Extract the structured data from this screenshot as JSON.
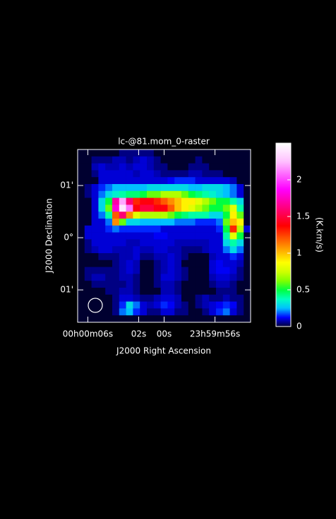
{
  "chart_data": {
    "type": "heatmap",
    "title": "lc-@81.mom_0-raster",
    "xlabel": "J2000 Right Ascension",
    "ylabel": "J2000 Declination",
    "colorbar_label": "(K.km/s)",
    "xlim": [
      6.8,
      -6.8
    ],
    "xticks": [
      {
        "value": 6,
        "label": "00h00m06s"
      },
      {
        "value": 2,
        "label": "02s"
      },
      {
        "value": 0,
        "label": "00s"
      },
      {
        "value": -4,
        "label": "23h59m56s"
      }
    ],
    "ylim": [
      -1.62,
      1.69
    ],
    "yticks": [
      {
        "value": 1,
        "label": "01'"
      },
      {
        "value": 0,
        "label": "0°"
      },
      {
        "value": -1,
        "label": "01'"
      }
    ],
    "zlim": [
      0,
      2.5
    ],
    "zticks": [
      0,
      0.5,
      1,
      1.5,
      2
    ],
    "colors": [
      "#000030",
      "#0000ff",
      "#00c0ff",
      "#00ffc0",
      "#00ff40",
      "#80ff00",
      "#d0ff00",
      "#ffff00",
      "#ffc000",
      "#ff8000",
      "#ff4000",
      "#ff0000",
      "#ff0040",
      "#ff0080",
      "#ff00c0",
      "#ff00ff",
      "#ff40ff",
      "#ff80ff",
      "#ffc0ff",
      "#ffe0ff",
      "#ffffff"
    ],
    "z": [
      [
        0,
        0,
        0,
        0,
        0,
        0,
        0.05,
        0.05,
        0.05,
        0.05,
        0.05,
        0,
        0,
        0,
        0,
        0,
        0,
        0,
        0,
        0,
        0,
        0,
        0,
        0,
        0
      ],
      [
        0,
        0,
        0.05,
        0.05,
        0.05,
        0.08,
        0.08,
        0.05,
        0.08,
        0.1,
        0.08,
        0.05,
        0,
        0,
        0,
        0,
        0,
        0.05,
        0,
        0,
        0,
        0,
        0,
        0,
        0
      ],
      [
        0,
        0,
        0.08,
        0.1,
        0.08,
        0.08,
        0.1,
        0.08,
        0.1,
        0.1,
        0.08,
        0.05,
        0.05,
        0,
        0,
        0,
        0.05,
        0.05,
        0.05,
        0,
        0,
        0,
        0,
        0,
        0
      ],
      [
        0,
        0,
        0.05,
        0.1,
        0.1,
        0.1,
        0.1,
        0.1,
        0.08,
        0.1,
        0.1,
        0.08,
        0.05,
        0.05,
        0.05,
        0.05,
        0.08,
        0.08,
        0.05,
        0.05,
        0.05,
        0,
        0,
        0,
        0
      ],
      [
        0,
        0,
        0,
        0.1,
        0.1,
        0.1,
        0.1,
        0.1,
        0.1,
        0.1,
        0.1,
        0.1,
        0.1,
        0.12,
        0.15,
        0.15,
        0.15,
        0.1,
        0.1,
        0.1,
        0.1,
        0.1,
        0.08,
        0,
        0
      ],
      [
        0,
        0.05,
        0.1,
        0.15,
        0.2,
        0.25,
        0.25,
        0.25,
        0.25,
        0.25,
        0.3,
        0.3,
        0.3,
        0.3,
        0.3,
        0.3,
        0.25,
        0.25,
        0.3,
        0.3,
        0.3,
        0.25,
        0.2,
        0.1,
        0
      ],
      [
        0,
        0.05,
        0.1,
        0.2,
        0.3,
        0.35,
        0.4,
        0.45,
        0.45,
        0.5,
        0.6,
        0.6,
        0.7,
        0.7,
        0.7,
        0.6,
        0.5,
        0.45,
        0.4,
        0.35,
        0.3,
        0.25,
        0.2,
        0.1,
        0
      ],
      [
        0,
        0,
        0.1,
        0.3,
        0.5,
        1.7,
        2.2,
        1.6,
        1.3,
        1.4,
        1.4,
        1.3,
        1.2,
        1.1,
        1.0,
        0.9,
        0.9,
        0.8,
        0.7,
        0.6,
        0.5,
        0.5,
        0.4,
        0.3,
        0
      ],
      [
        0,
        0,
        0.1,
        0.3,
        0.6,
        1.8,
        2.4,
        2.1,
        1.4,
        1.5,
        1.5,
        1.4,
        1.4,
        1.2,
        1.0,
        0.9,
        0.8,
        0.7,
        0.6,
        0.5,
        0.5,
        0.6,
        0.8,
        0.4,
        0
      ],
      [
        0,
        0,
        0.1,
        0.2,
        0.4,
        1.2,
        1.6,
        1.1,
        0.8,
        0.7,
        0.7,
        0.7,
        0.7,
        0.6,
        0.5,
        0.45,
        0.4,
        0.4,
        0.4,
        0.3,
        0.3,
        0.5,
        0.9,
        0.6,
        0
      ],
      [
        0,
        0,
        0.1,
        0.1,
        0.2,
        1.1,
        0.6,
        0.3,
        0.3,
        0.25,
        0.25,
        0.25,
        0.25,
        0.25,
        0.2,
        0.2,
        0.2,
        0.15,
        0.15,
        0.15,
        0.2,
        0.6,
        1.0,
        0.9,
        0
      ],
      [
        0,
        0.1,
        0.1,
        0.1,
        0.15,
        0.2,
        0.15,
        0.15,
        0.15,
        0.15,
        0.15,
        0.15,
        0.1,
        0.1,
        0.1,
        0.1,
        0.1,
        0.1,
        0.1,
        0.1,
        0.15,
        0.5,
        1.3,
        0.7,
        0.1
      ],
      [
        0,
        0.1,
        0.1,
        0.1,
        0.1,
        0.1,
        0.1,
        0.1,
        0.1,
        0.1,
        0.1,
        0.12,
        0.12,
        0.1,
        0.1,
        0.1,
        0.1,
        0.1,
        0.1,
        0.1,
        0.1,
        0.4,
        0.8,
        0.5,
        0
      ],
      [
        0,
        0.05,
        0.1,
        0.1,
        0.1,
        0.1,
        0.1,
        0.08,
        0.08,
        0.1,
        0.1,
        0.1,
        0.1,
        0.1,
        0.08,
        0.08,
        0.08,
        0.08,
        0.08,
        0.1,
        0.1,
        0.3,
        0.4,
        0.3,
        0
      ],
      [
        0,
        0.05,
        0.08,
        0.1,
        0.1,
        0.08,
        0.08,
        0.08,
        0.1,
        0.08,
        0.08,
        0.1,
        0.1,
        0.08,
        0.08,
        0.05,
        0.05,
        0.05,
        0.08,
        0.1,
        0.1,
        0.2,
        0.3,
        0.2,
        0
      ],
      [
        0,
        0,
        0,
        0.05,
        0.05,
        0.05,
        0.08,
        0.08,
        0.1,
        0.05,
        0.05,
        0.08,
        0.08,
        0.1,
        0.08,
        0.05,
        0,
        0,
        0,
        0.08,
        0.1,
        0.1,
        0.15,
        0.1,
        0
      ],
      [
        0,
        0,
        0,
        0,
        0,
        0.05,
        0.08,
        0.1,
        0.08,
        0,
        0,
        0.05,
        0.08,
        0.1,
        0.08,
        0,
        0,
        0,
        0,
        0.1,
        0.12,
        0.1,
        0.1,
        0.08,
        0
      ],
      [
        0,
        0.05,
        0.05,
        0.05,
        0.05,
        0.05,
        0.08,
        0.1,
        0.08,
        0,
        0,
        0.05,
        0.08,
        0.1,
        0.08,
        0.05,
        0,
        0,
        0,
        0.1,
        0.12,
        0.12,
        0.1,
        0.05,
        0
      ],
      [
        0,
        0.05,
        0.08,
        0.08,
        0.05,
        0.05,
        0.08,
        0.08,
        0.05,
        0,
        0,
        0.05,
        0.1,
        0.1,
        0.08,
        0.05,
        0,
        0,
        0,
        0.08,
        0.1,
        0.1,
        0.08,
        0.05,
        0
      ],
      [
        0,
        0,
        0.05,
        0.05,
        0.05,
        0.05,
        0.05,
        0.08,
        0.05,
        0,
        0,
        0.05,
        0.08,
        0.08,
        0.05,
        0,
        0,
        0,
        0,
        0.05,
        0.08,
        0.08,
        0.05,
        0,
        0
      ],
      [
        0,
        0,
        0,
        0,
        0.05,
        0.05,
        0.08,
        0.08,
        0.05,
        0,
        0,
        0,
        0.08,
        0.08,
        0.05,
        0,
        0,
        0,
        0,
        0,
        0.05,
        0.05,
        0.05,
        0,
        0
      ],
      [
        0,
        0,
        0,
        0,
        0,
        0.05,
        0.1,
        0.1,
        0.08,
        0.05,
        0.05,
        0.08,
        0.1,
        0.1,
        0.08,
        0,
        0,
        0.05,
        0.08,
        0.05,
        0.05,
        0.08,
        0.05,
        0.05,
        0
      ],
      [
        0,
        0,
        0,
        0,
        0,
        0.05,
        0.15,
        0.3,
        0.2,
        0.1,
        0.08,
        0.1,
        0.15,
        0.12,
        0.08,
        0.05,
        0,
        0.05,
        0.08,
        0.1,
        0.12,
        0.15,
        0.12,
        0.05,
        0
      ],
      [
        0,
        0,
        0,
        0,
        0,
        0.05,
        0.2,
        0.25,
        0.15,
        0.1,
        0.05,
        0.05,
        0.1,
        0.1,
        0.05,
        0.05,
        0,
        0,
        0.05,
        0.1,
        0.15,
        0.2,
        0.1,
        0.05,
        0
      ],
      [
        0,
        0,
        0,
        0,
        0,
        0,
        0,
        0,
        0,
        0,
        0,
        0,
        0,
        0,
        0,
        0,
        0,
        0,
        0,
        0,
        0,
        0,
        0,
        0,
        0
      ]
    ]
  }
}
